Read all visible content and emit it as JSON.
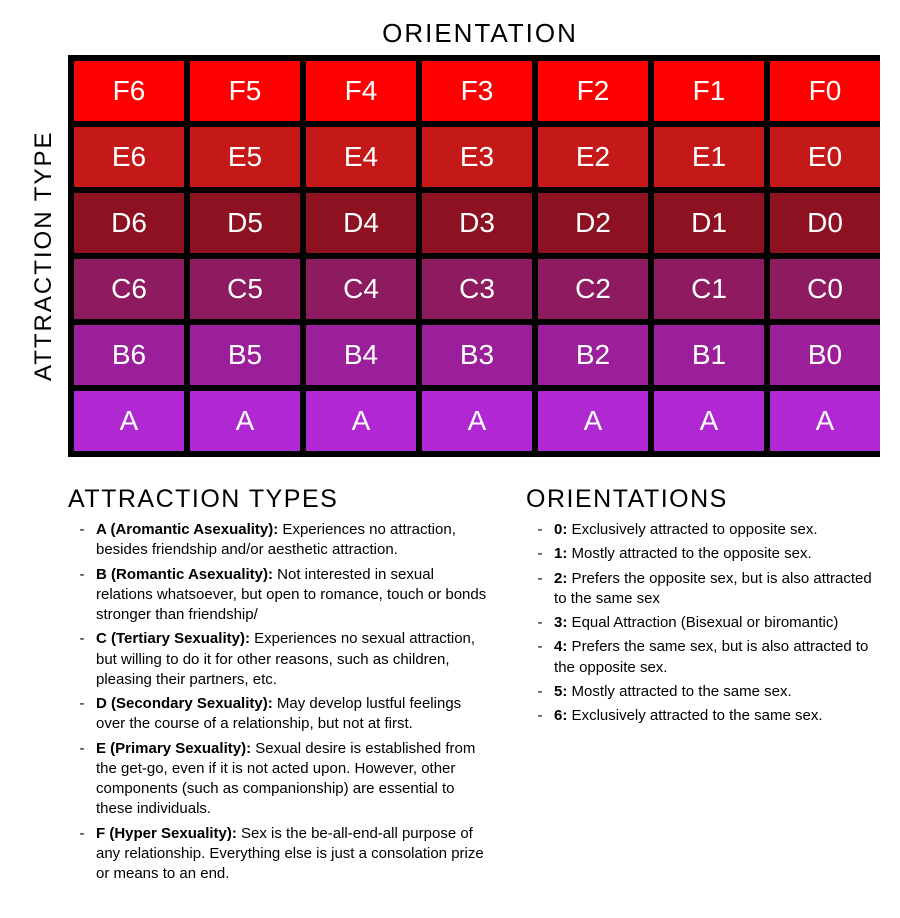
{
  "chart": {
    "type": "heatmap",
    "top_label": "ORIENTATION",
    "left_label": "ATTRACTION TYPE",
    "cell_text_color": "#ffffff",
    "border_color": "#000000",
    "border_width": 6,
    "cell_fontsize": 28,
    "axis_label_fontsize": 24,
    "rows": [
      {
        "color": "#ff0000",
        "cells": [
          "F6",
          "F5",
          "F4",
          "F3",
          "F2",
          "F1",
          "F0"
        ]
      },
      {
        "color": "#c51818",
        "cells": [
          "E6",
          "E5",
          "E4",
          "E3",
          "E2",
          "E1",
          "E0"
        ]
      },
      {
        "color": "#8e1121",
        "cells": [
          "D6",
          "D5",
          "D4",
          "D3",
          "D2",
          "D1",
          "D0"
        ]
      },
      {
        "color": "#8e1b60",
        "cells": [
          "C6",
          "C5",
          "C4",
          "C3",
          "C2",
          "C1",
          "C0"
        ]
      },
      {
        "color": "#9b1f9b",
        "cells": [
          "B6",
          "B5",
          "B4",
          "B3",
          "B2",
          "B1",
          "B0"
        ]
      },
      {
        "color": "#b028d2",
        "cells": [
          "A",
          "A",
          "A",
          "A",
          "A",
          "A",
          "A"
        ]
      }
    ]
  },
  "legend": {
    "heading_fontsize": 25,
    "item_fontsize": 15,
    "attraction": {
      "heading": "ATTRACTION TYPES",
      "items": [
        {
          "key": "A (Aromantic Asexuality):",
          "desc": " Experiences no attraction, besides friendship and/or aesthetic attraction."
        },
        {
          "key": "B (Romantic Asexuality):",
          "desc": " Not interested in sexual relations whatsoever, but open to romance, touch or bonds stronger than friendship/"
        },
        {
          "key": "C (Tertiary Sexuality):",
          "desc": " Experiences no sexual attraction, but willing to do it for other reasons, such as children, pleasing their partners, etc."
        },
        {
          "key": "D (Secondary Sexuality):",
          "desc": " May develop lustful feelings over the course of a relationship, but not at first."
        },
        {
          "key": "E (Primary Sexuality):",
          "desc": "  Sexual desire is established from the get-go, even if it is not acted upon.  However, other components (such as companionship) are essential to these individuals."
        },
        {
          "key": "F (Hyper Sexuality):",
          "desc": " Sex is the be-all-end-all purpose of any relationship.  Everything else is just a consolation prize or means to an end."
        }
      ]
    },
    "orientations": {
      "heading": "ORIENTATIONS",
      "items": [
        {
          "key": "0:",
          "desc": " Exclusively attracted to opposite sex."
        },
        {
          "key": "1:",
          "desc": " Mostly attracted to the opposite sex."
        },
        {
          "key": "2:",
          "desc": " Prefers the opposite sex, but is also attracted to the same sex"
        },
        {
          "key": "3:",
          "desc": " Equal Attraction (Bisexual or biromantic)"
        },
        {
          "key": "4:",
          "desc": " Prefers the same sex, but is also attracted to the opposite sex."
        },
        {
          "key": "5:",
          "desc": " Mostly attracted to the same sex."
        },
        {
          "key": "6:",
          "desc": " Exclusively attracted to the same sex."
        }
      ]
    }
  }
}
